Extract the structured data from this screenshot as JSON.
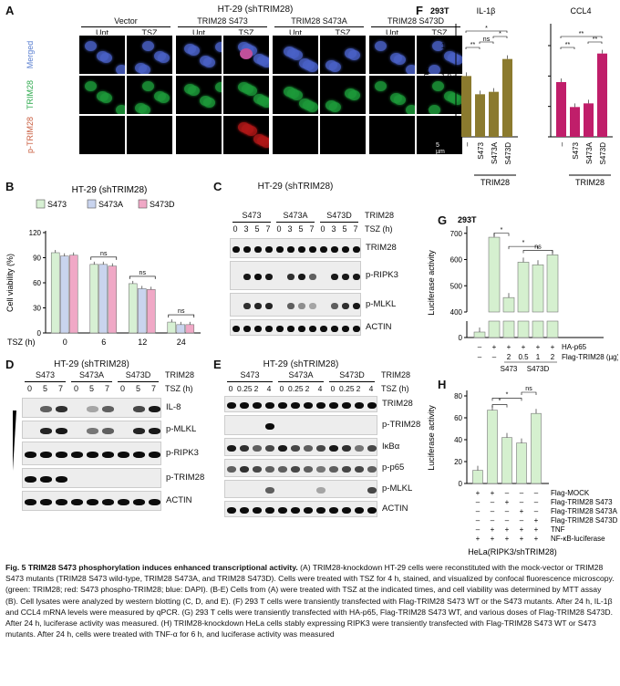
{
  "panelA": {
    "letter": "A",
    "title": "HT-29 (shTRIM28)",
    "groups": [
      "Vector",
      "TRIM28 S473",
      "TRIM28 S473A",
      "TRIM28 S473D"
    ],
    "conds": [
      "Unt",
      "TSZ"
    ],
    "rows": [
      "Merged",
      "TRIM28",
      "p-TRIM28"
    ],
    "scale": "5 µm"
  },
  "panelB": {
    "letter": "B",
    "title": "HT-29 (shTRIM28)",
    "legend": [
      "S473",
      "S473A",
      "S473D"
    ],
    "xlabel": "TSZ (h)",
    "ylabel": "Cell viability (%)",
    "yticks": [
      "0",
      "30",
      "60",
      "90",
      "120"
    ],
    "ns": "ns"
  },
  "panelC": {
    "letter": "C",
    "title": "HT-29 (shTRIM28)",
    "groups": [
      "S473",
      "S473A",
      "S473D"
    ],
    "times": [
      "0",
      "3",
      "5",
      "7"
    ],
    "rowlabel": "TRIM28",
    "tszlabel": "TSZ (h)",
    "bands": [
      "TRIM28",
      "p-RIPK3",
      "p-MLKL",
      "ACTIN"
    ]
  },
  "panelD": {
    "letter": "D",
    "title": "HT-29 (shTRIM28)",
    "groups": [
      "S473",
      "S473A",
      "S473D"
    ],
    "times": [
      "0",
      "5",
      "7"
    ],
    "rowlabel": "TRIM28",
    "tszlabel": "TSZ (h)",
    "bands": [
      "IL-8",
      "p-MLKL",
      "p-RIPK3",
      "p-TRIM28",
      "ACTIN"
    ]
  },
  "panelE": {
    "letter": "E",
    "title": "HT-29 (shTRIM28)",
    "groups": [
      "S473",
      "S473A",
      "S473D"
    ],
    "times": [
      "0",
      "0.25",
      "2",
      "4"
    ],
    "rowlabel": "TRIM28",
    "tszlabel": "TSZ (h)",
    "bands": [
      "TRIM28",
      "p-TRIM28",
      "IκBα",
      "p-p65",
      "p-MLKL",
      "ACTIN"
    ]
  },
  "panelF": {
    "letter": "F",
    "cellline": "293T",
    "titles": [
      "IL-1β",
      "CCL4"
    ],
    "ylabel": "Relative mRNA level",
    "yticks": [
      "0",
      "0.5",
      "1.0",
      "1.5"
    ],
    "xcats": [
      "–",
      "S473",
      "S473A",
      "S473D"
    ],
    "group": "TRIM28",
    "sig": [
      "**",
      "ns",
      "*",
      "**",
      "**",
      "*",
      "**"
    ]
  },
  "panelG": {
    "letter": "G",
    "cellline": "293T",
    "ylabel": "Luciferase activity",
    "yticks_top": [
      "400",
      "500",
      "600",
      "700"
    ],
    "ytick_bottom": "0",
    "rows": [
      {
        "label": "HA-p65",
        "vals": [
          "–",
          "+",
          "+",
          "+",
          "+",
          "+"
        ]
      },
      {
        "label": "Flag-TRIM28 (µg)",
        "vals": [
          "–",
          "–",
          "2",
          "0.5",
          "1",
          "2"
        ]
      }
    ],
    "groups": [
      "S473",
      "S473D"
    ],
    "sig": [
      "*",
      "*",
      "ns"
    ]
  },
  "panelH": {
    "letter": "H",
    "ylabel": "Luciferase activity",
    "yticks": [
      "0",
      "20",
      "40",
      "60",
      "80"
    ],
    "rows": [
      {
        "label": "Flag-MOCK",
        "vals": [
          "+",
          "+",
          "–",
          "–",
          "–"
        ]
      },
      {
        "label": "Flag-TRIM28 S473",
        "vals": [
          "–",
          "–",
          "+",
          "–",
          "–"
        ]
      },
      {
        "label": "Flag-TRIM28 S473A",
        "vals": [
          "–",
          "–",
          "–",
          "+",
          "–"
        ]
      },
      {
        "label": "Flag-TRIM28 S473D",
        "vals": [
          "–",
          "–",
          "–",
          "–",
          "+"
        ]
      },
      {
        "label": "TNF",
        "vals": [
          "–",
          "+",
          "+",
          "+",
          "+"
        ]
      },
      {
        "label": "NF-κB-luciferase",
        "vals": [
          "+",
          "+",
          "+",
          "+",
          "+"
        ]
      }
    ],
    "footer": "HeLa(RIPK3/shTRIM28)",
    "sig": [
      "*",
      "*",
      "ns"
    ]
  },
  "chart_data": [
    {
      "id": "B",
      "type": "bar",
      "title": "HT-29 (shTRIM28)",
      "xlabel": "TSZ (h)",
      "ylabel": "Cell viability (%)",
      "ylim": [
        0,
        120
      ],
      "categories": [
        "0",
        "6",
        "12",
        "24"
      ],
      "series": [
        {
          "name": "S473",
          "values": [
            96,
            82,
            59,
            13
          ]
        },
        {
          "name": "S473A",
          "values": [
            92,
            82,
            53,
            10
          ]
        },
        {
          "name": "S473D",
          "values": [
            93,
            80,
            52,
            10
          ]
        }
      ],
      "colors": [
        "#d7f0d3",
        "#c9d4ee",
        "#f0a8c6"
      ]
    },
    {
      "id": "F1",
      "type": "bar",
      "title": "IL-1β",
      "ylabel": "Relative mRNA level",
      "ylim": [
        0,
        1.5
      ],
      "categories": [
        "–",
        "S473",
        "S473A",
        "S473D"
      ],
      "values": [
        1.0,
        0.7,
        0.74,
        1.28
      ],
      "color": "#8b7a2e"
    },
    {
      "id": "F2",
      "type": "bar",
      "title": "CCL4",
      "ylim": [
        0,
        1.5
      ],
      "categories": [
        "–",
        "S473",
        "S473A",
        "S473D"
      ],
      "values": [
        0.9,
        0.49,
        0.55,
        1.37
      ],
      "color": "#c01e6a"
    },
    {
      "id": "G",
      "type": "bar",
      "ylabel": "Luciferase activity",
      "categories": [
        "1",
        "2",
        "3",
        "4",
        "5",
        "6"
      ],
      "values": [
        8,
        685,
        455,
        590,
        580,
        618
      ],
      "color": "#d5f0cf"
    },
    {
      "id": "H",
      "type": "bar",
      "ylabel": "Luciferase activity",
      "ylim": [
        0,
        80
      ],
      "categories": [
        "1",
        "2",
        "3",
        "4",
        "5"
      ],
      "values": [
        12,
        67,
        42,
        37,
        64
      ],
      "color": "#d5f0cf"
    }
  ],
  "caption": {
    "title": "Fig. 5",
    "title_rest": " TRIM28 S473 phosphorylation induces enhanced transcriptional activity. ",
    "body": "(A) TRIM28-knockdown HT-29 cells were reconstituted with the mock-vector or TRIM28 S473 mutants (TRIM28 S473 wild-type, TRIM28 S473A, and TRIM28 S473D). Cells were treated with TSZ for 4 h, stained, and visualized by confocal fluorescence microscopy. (green: TRIM28; red: S473 phospho-TRIM28; blue: DAPI). (B-E) Cells from (A) were treated with TSZ at the indicated times, and cell viability was determined by MTT assay (B). Cell lysates were analyzed by western blotting (C, D, and E). (F) 293 T cells were transiently transfected with Flag-TRIM28 S473 WT or the S473 mutants. After 24 h, IL-1β and CCL4 mRNA levels were measured by qPCR. (G) 293 T cells were transiently transfected with HA-p65, Flag-TRIM28 S473 WT, and various doses of Flag-TRIM28 S473D. After 24 h, luciferase activity was measured. (H) TRIM28-knockdown HeLa cells stably expressing RIPK3 were transiently transfected with Flag-TRIM28 S473 WT or S473 mutants. After 24 h, cells were treated with TNF-α for 6 h, and luciferase activity was measured"
  }
}
